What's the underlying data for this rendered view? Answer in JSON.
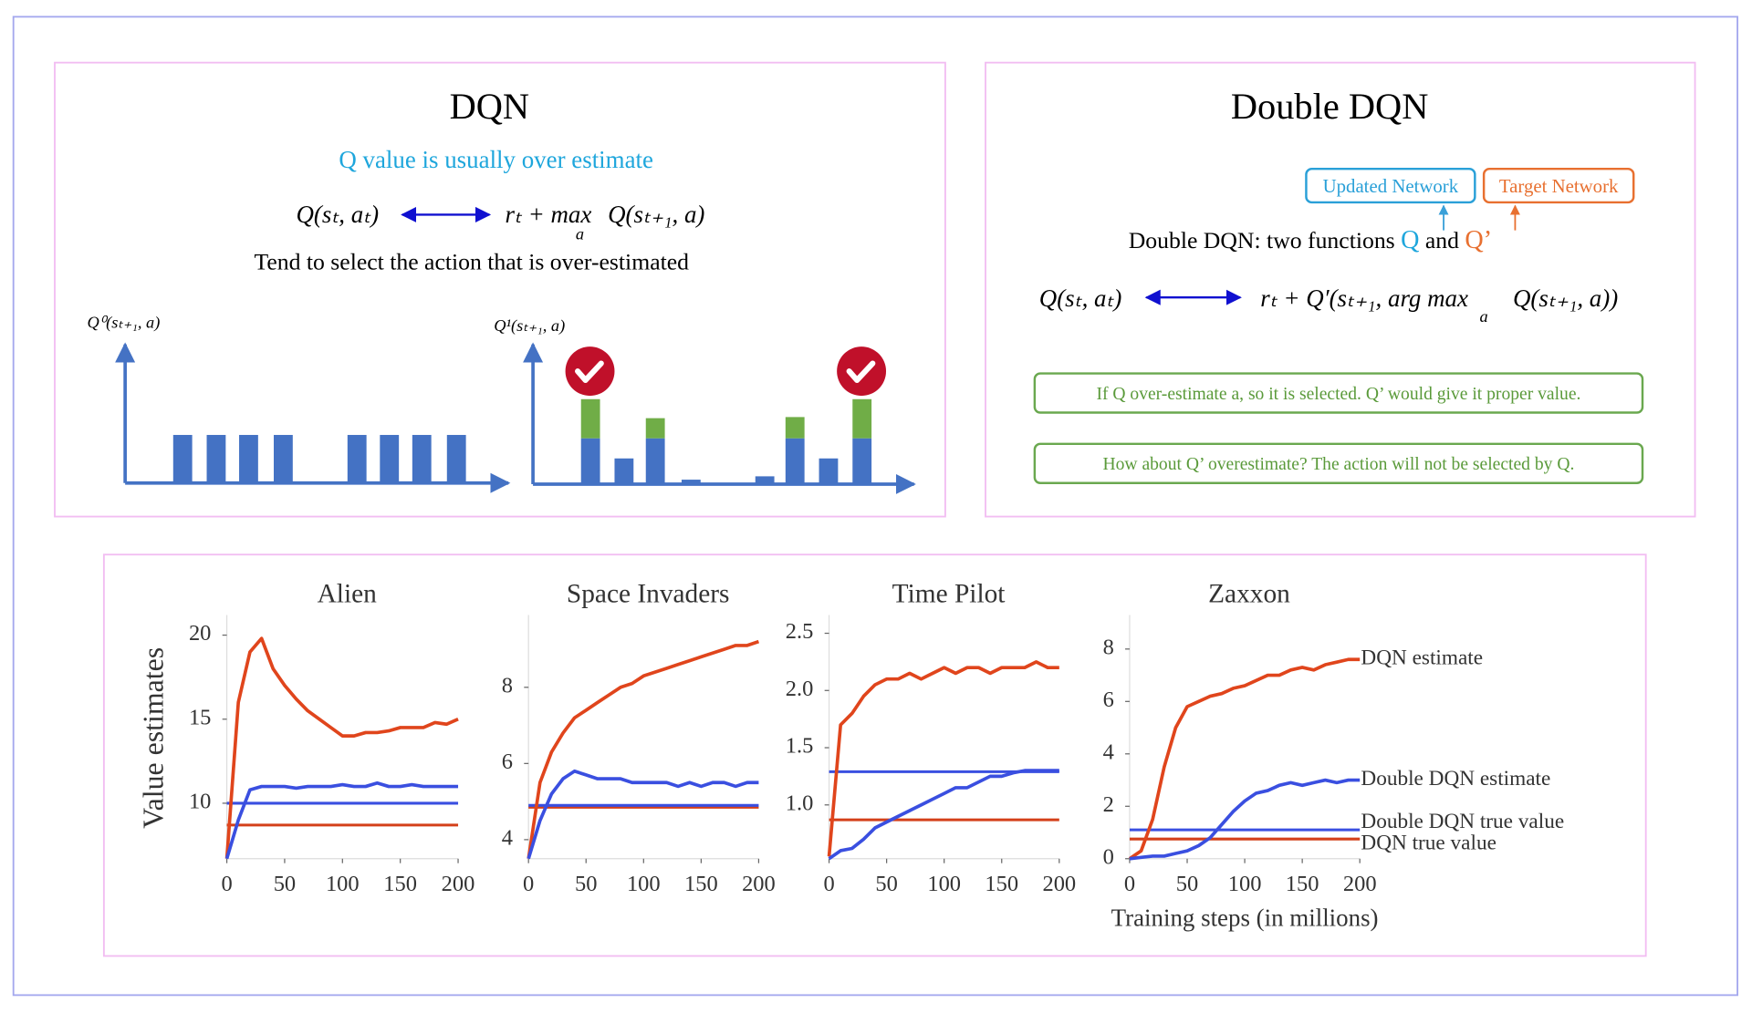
{
  "top_left": {
    "title": "DQN",
    "subtitle": "Q value is usually over estimate",
    "formula": {
      "lhs": "Q(sₜ, aₜ)",
      "rhs_head": "rₜ + max",
      "max_sub": "a",
      "rhs_tail": "Q(sₜ₊₁, a)"
    },
    "note": "Tend to select the action that is over-estimated",
    "axis_labels": [
      "Q⁰(sₜ₊₁, a)",
      "Q¹(sₜ₊₁, a)"
    ]
  },
  "top_right": {
    "title": "Double DQN",
    "tags": [
      "Updated Network",
      "Target Network"
    ],
    "sentence": {
      "lead": "Double DQN: two functions ",
      "q": "Q",
      "and": " and ",
      "q2": "Q’"
    },
    "formula": {
      "lhs": "Q(sₜ, aₜ)",
      "rhs_head": "rₜ + Q′(sₜ₊₁, arg max",
      "max_sub": "a",
      "rhs_tail": "Q(sₜ₊₁, a))"
    },
    "notes": [
      "If Q over-estimate a, so it is selected. Q’ would give it proper value.",
      "How about Q’ overestimate? The action will not be selected by Q."
    ]
  },
  "chart_data": [
    {
      "type": "line",
      "title": "Alien",
      "y_label": "Value estimates",
      "x": [
        0,
        10,
        20,
        30,
        40,
        50,
        60,
        70,
        80,
        90,
        100,
        110,
        120,
        130,
        140,
        150,
        160,
        170,
        180,
        190,
        200
      ],
      "xlim": [
        0,
        200
      ],
      "xticks": [
        0,
        50,
        100,
        150,
        200
      ],
      "ylim": [
        6.7,
        21.2
      ],
      "yticks": [
        10,
        15,
        20
      ],
      "series": [
        {
          "name": "DQN estimate",
          "color": "#e0451c",
          "values": [
            6.7,
            16,
            19,
            19.8,
            18,
            17,
            16.2,
            15.5,
            15,
            14.5,
            14,
            14,
            14.2,
            14.2,
            14.3,
            14.5,
            14.5,
            14.5,
            14.8,
            14.7,
            15
          ]
        },
        {
          "name": "Double DQN estimate",
          "color": "#3a4fe0",
          "values": [
            6.7,
            9,
            10.8,
            11,
            11,
            11,
            10.9,
            11,
            11,
            11,
            11.1,
            11,
            11,
            11.2,
            11,
            11,
            11.1,
            11,
            11,
            11,
            11
          ]
        },
        {
          "name": "DQN true value",
          "color": "#d4401a",
          "values": [
            8.7,
            8.7,
            8.7,
            8.7,
            8.7,
            8.7,
            8.7,
            8.7,
            8.7,
            8.7,
            8.7,
            8.7,
            8.7,
            8.7,
            8.7,
            8.7,
            8.7,
            8.7,
            8.7,
            8.7,
            8.7
          ]
        },
        {
          "name": "Double DQN true value",
          "color": "#3a4fe0",
          "values": [
            10,
            10,
            10,
            10,
            10,
            10,
            10,
            10,
            10,
            10,
            10,
            10,
            10,
            10,
            10,
            10,
            10,
            10,
            10,
            10,
            10
          ]
        }
      ]
    },
    {
      "type": "line",
      "title": "Space Invaders",
      "x": [
        0,
        10,
        20,
        30,
        40,
        50,
        60,
        70,
        80,
        90,
        100,
        110,
        120,
        130,
        140,
        150,
        160,
        170,
        180,
        190,
        200
      ],
      "xlim": [
        0,
        200
      ],
      "xticks": [
        0,
        50,
        100,
        150,
        200
      ],
      "ylim": [
        3.5,
        9.9
      ],
      "yticks": [
        4,
        6,
        8
      ],
      "series": [
        {
          "name": "DQN estimate",
          "color": "#e0451c",
          "values": [
            3.5,
            5.5,
            6.3,
            6.8,
            7.2,
            7.4,
            7.6,
            7.8,
            8.0,
            8.1,
            8.3,
            8.4,
            8.5,
            8.6,
            8.7,
            8.8,
            8.9,
            9.0,
            9.1,
            9.1,
            9.2
          ]
        },
        {
          "name": "Double DQN estimate",
          "color": "#3a4fe0",
          "values": [
            3.5,
            4.5,
            5.2,
            5.6,
            5.8,
            5.7,
            5.6,
            5.6,
            5.6,
            5.5,
            5.5,
            5.5,
            5.5,
            5.4,
            5.5,
            5.4,
            5.5,
            5.5,
            5.4,
            5.5,
            5.5
          ]
        },
        {
          "name": "DQN true value",
          "color": "#d4401a",
          "values": [
            4.85,
            4.85,
            4.85,
            4.85,
            4.85,
            4.85,
            4.85,
            4.85,
            4.85,
            4.85,
            4.85,
            4.85,
            4.85,
            4.85,
            4.85,
            4.85,
            4.85,
            4.85,
            4.85,
            4.85,
            4.85
          ]
        },
        {
          "name": "Double DQN true value",
          "color": "#3a4fe0",
          "values": [
            4.9,
            4.9,
            4.9,
            4.9,
            4.9,
            4.9,
            4.9,
            4.9,
            4.9,
            4.9,
            4.9,
            4.9,
            4.9,
            4.9,
            4.9,
            4.9,
            4.9,
            4.9,
            4.9,
            4.9,
            4.9
          ]
        }
      ]
    },
    {
      "type": "line",
      "title": "Time Pilot",
      "x": [
        0,
        10,
        20,
        30,
        40,
        50,
        60,
        70,
        80,
        90,
        100,
        110,
        120,
        130,
        140,
        150,
        160,
        170,
        180,
        190,
        200
      ],
      "xlim": [
        0,
        200
      ],
      "xticks": [
        0,
        50,
        100,
        150,
        200
      ],
      "ylim": [
        0.53,
        2.66
      ],
      "yticks": [
        {
          "value": 1,
          "label": "1.0"
        },
        1.5,
        {
          "value": 2,
          "label": "2.0"
        },
        2.5
      ],
      "series": [
        {
          "name": "DQN estimate",
          "color": "#e0451c",
          "values": [
            0.55,
            1.7,
            1.8,
            1.95,
            2.05,
            2.1,
            2.1,
            2.15,
            2.1,
            2.15,
            2.2,
            2.15,
            2.2,
            2.2,
            2.15,
            2.2,
            2.2,
            2.2,
            2.25,
            2.2,
            2.2
          ]
        },
        {
          "name": "Double DQN estimate",
          "color": "#3a4fe0",
          "values": [
            0.53,
            0.6,
            0.62,
            0.7,
            0.8,
            0.85,
            0.9,
            0.95,
            1.0,
            1.05,
            1.1,
            1.15,
            1.15,
            1.2,
            1.25,
            1.25,
            1.28,
            1.3,
            1.3,
            1.3,
            1.3
          ]
        },
        {
          "name": "DQN true value",
          "color": "#d4401a",
          "values": [
            0.87,
            0.87,
            0.87,
            0.87,
            0.87,
            0.87,
            0.87,
            0.87,
            0.87,
            0.87,
            0.87,
            0.87,
            0.87,
            0.87,
            0.87,
            0.87,
            0.87,
            0.87,
            0.87,
            0.87,
            0.87
          ]
        },
        {
          "name": "Double DQN true value",
          "color": "#3a4fe0",
          "values": [
            1.29,
            1.29,
            1.29,
            1.29,
            1.29,
            1.29,
            1.29,
            1.29,
            1.29,
            1.29,
            1.29,
            1.29,
            1.29,
            1.29,
            1.29,
            1.29,
            1.29,
            1.29,
            1.29,
            1.29,
            1.29
          ]
        }
      ]
    },
    {
      "type": "line",
      "title": "Zaxxon",
      "x_label": "Training steps (in millions)",
      "legend": "right",
      "x": [
        0,
        10,
        20,
        30,
        40,
        50,
        60,
        70,
        80,
        90,
        100,
        110,
        120,
        130,
        140,
        150,
        160,
        170,
        180,
        190,
        200
      ],
      "xlim": [
        0,
        200
      ],
      "xticks": [
        0,
        50,
        100,
        150,
        200
      ],
      "ylim": [
        0,
        9.3
      ],
      "yticks": [
        0,
        2,
        4,
        6,
        8
      ],
      "series": [
        {
          "name": "DQN estimate",
          "color": "#e0451c",
          "values": [
            0,
            0.3,
            1.5,
            3.5,
            5,
            5.8,
            6,
            6.2,
            6.3,
            6.5,
            6.6,
            6.8,
            7,
            7,
            7.2,
            7.3,
            7.2,
            7.4,
            7.5,
            7.6,
            7.6
          ]
        },
        {
          "name": "Double DQN estimate",
          "color": "#3a4fe0",
          "values": [
            0,
            0.05,
            0.1,
            0.1,
            0.2,
            0.3,
            0.5,
            0.8,
            1.3,
            1.8,
            2.2,
            2.5,
            2.6,
            2.8,
            2.9,
            2.8,
            2.9,
            3.0,
            2.9,
            3.0,
            3.0
          ]
        },
        {
          "name": "DQN true value",
          "color": "#d4401a",
          "values": [
            0.75,
            0.75,
            0.75,
            0.75,
            0.75,
            0.75,
            0.75,
            0.75,
            0.75,
            0.75,
            0.75,
            0.75,
            0.75,
            0.75,
            0.75,
            0.75,
            0.75,
            0.75,
            0.75,
            0.75,
            0.75
          ]
        },
        {
          "name": "Double DQN true value",
          "color": "#3a4fe0",
          "values": [
            1.1,
            1.1,
            1.1,
            1.1,
            1.1,
            1.1,
            1.1,
            1.1,
            1.1,
            1.1,
            1.1,
            1.1,
            1.1,
            1.1,
            1.1,
            1.1,
            1.1,
            1.1,
            1.1,
            1.1,
            1.1
          ]
        }
      ]
    }
  ]
}
